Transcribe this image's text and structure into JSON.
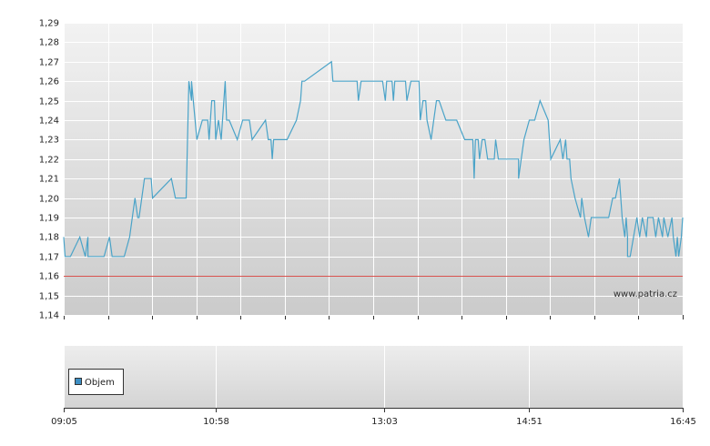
{
  "chart_data": {
    "type": "line",
    "color": "#4aa3c8",
    "x": [
      545,
      546,
      550,
      557,
      561,
      563,
      563,
      575,
      579,
      581,
      590,
      594,
      598,
      600,
      601,
      605,
      610,
      611,
      625,
      628,
      636,
      638,
      640,
      640,
      644,
      648,
      652,
      653,
      655,
      657,
      658,
      660,
      662,
      665,
      666,
      668,
      674,
      678,
      683,
      685,
      695,
      697,
      699,
      700,
      701,
      711,
      718,
      721,
      722,
      724,
      744,
      745,
      763,
      764,
      766,
      782,
      784,
      785,
      789,
      790,
      791,
      799,
      800,
      803,
      809,
      810,
      812,
      814,
      815,
      818,
      820,
      822,
      824,
      829,
      837,
      843,
      849,
      850,
      851,
      853,
      854,
      856,
      858,
      860,
      865,
      866,
      868,
      883,
      883,
      885,
      887,
      891,
      895,
      899,
      905,
      907,
      914,
      916,
      918,
      919,
      921,
      922,
      925,
      929,
      930,
      932,
      935,
      937,
      950,
      953,
      955,
      958,
      960,
      962,
      963,
      964,
      964,
      966,
      971,
      973,
      975,
      978,
      979,
      983,
      985,
      987,
      990,
      991,
      994,
      997,
      998,
      1000,
      1001,
      1002,
      1004,
      1005
    ],
    "values": [
      1.18,
      1.17,
      1.17,
      1.18,
      1.17,
      1.18,
      1.17,
      1.17,
      1.18,
      1.17,
      1.17,
      1.18,
      1.2,
      1.19,
      1.19,
      1.21,
      1.21,
      1.2,
      1.21,
      1.2,
      1.2,
      1.26,
      1.25,
      1.26,
      1.23,
      1.24,
      1.24,
      1.23,
      1.25,
      1.25,
      1.23,
      1.24,
      1.23,
      1.26,
      1.24,
      1.24,
      1.23,
      1.24,
      1.24,
      1.23,
      1.24,
      1.23,
      1.23,
      1.22,
      1.23,
      1.23,
      1.24,
      1.25,
      1.26,
      1.26,
      1.27,
      1.26,
      1.26,
      1.25,
      1.26,
      1.26,
      1.25,
      1.26,
      1.26,
      1.25,
      1.26,
      1.26,
      1.25,
      1.26,
      1.26,
      1.24,
      1.25,
      1.25,
      1.24,
      1.23,
      1.24,
      1.25,
      1.25,
      1.24,
      1.24,
      1.23,
      1.23,
      1.21,
      1.23,
      1.23,
      1.22,
      1.23,
      1.23,
      1.22,
      1.22,
      1.23,
      1.22,
      1.22,
      1.21,
      1.22,
      1.23,
      1.24,
      1.24,
      1.25,
      1.24,
      1.22,
      1.23,
      1.22,
      1.23,
      1.22,
      1.22,
      1.21,
      1.2,
      1.19,
      1.2,
      1.19,
      1.18,
      1.19,
      1.19,
      1.2,
      1.2,
      1.21,
      1.19,
      1.18,
      1.19,
      1.18,
      1.17,
      1.17,
      1.19,
      1.18,
      1.19,
      1.18,
      1.19,
      1.19,
      1.18,
      1.19,
      1.18,
      1.19,
      1.18,
      1.19,
      1.18,
      1.17,
      1.18,
      1.17,
      1.18,
      1.19
    ],
    "xlim": [
      545,
      1005
    ],
    "xticks": [
      {
        "value": 545,
        "label": "09:05"
      },
      {
        "value": 658,
        "label": "10:58"
      },
      {
        "value": 783,
        "label": "13:03"
      },
      {
        "value": 891,
        "label": "14:51"
      },
      {
        "value": 1005,
        "label": "16:45"
      }
    ],
    "ylim": [
      1.14,
      1.29
    ],
    "yticks": [
      {
        "value": 1.14,
        "label": "1,14"
      },
      {
        "value": 1.15,
        "label": "1,15"
      },
      {
        "value": 1.16,
        "label": "1,16"
      },
      {
        "value": 1.17,
        "label": "1,17"
      },
      {
        "value": 1.18,
        "label": "1,18"
      },
      {
        "value": 1.19,
        "label": "1,19"
      },
      {
        "value": 1.2,
        "label": "1,20"
      },
      {
        "value": 1.21,
        "label": "1,21"
      },
      {
        "value": 1.22,
        "label": "1,22"
      },
      {
        "value": 1.23,
        "label": "1,23"
      },
      {
        "value": 1.24,
        "label": "1,24"
      },
      {
        "value": 1.25,
        "label": "1,25"
      },
      {
        "value": 1.26,
        "label": "1,26"
      },
      {
        "value": 1.27,
        "label": "1,27"
      },
      {
        "value": 1.28,
        "label": "1,28"
      },
      {
        "value": 1.29,
        "label": "1,29"
      }
    ],
    "grid": true,
    "reference_line": {
      "value": 1.16,
      "color": "#d9534f"
    },
    "watermark": "www.patria.cz",
    "volume_legend": "Objem",
    "volume_color": "#3d8fc4"
  }
}
